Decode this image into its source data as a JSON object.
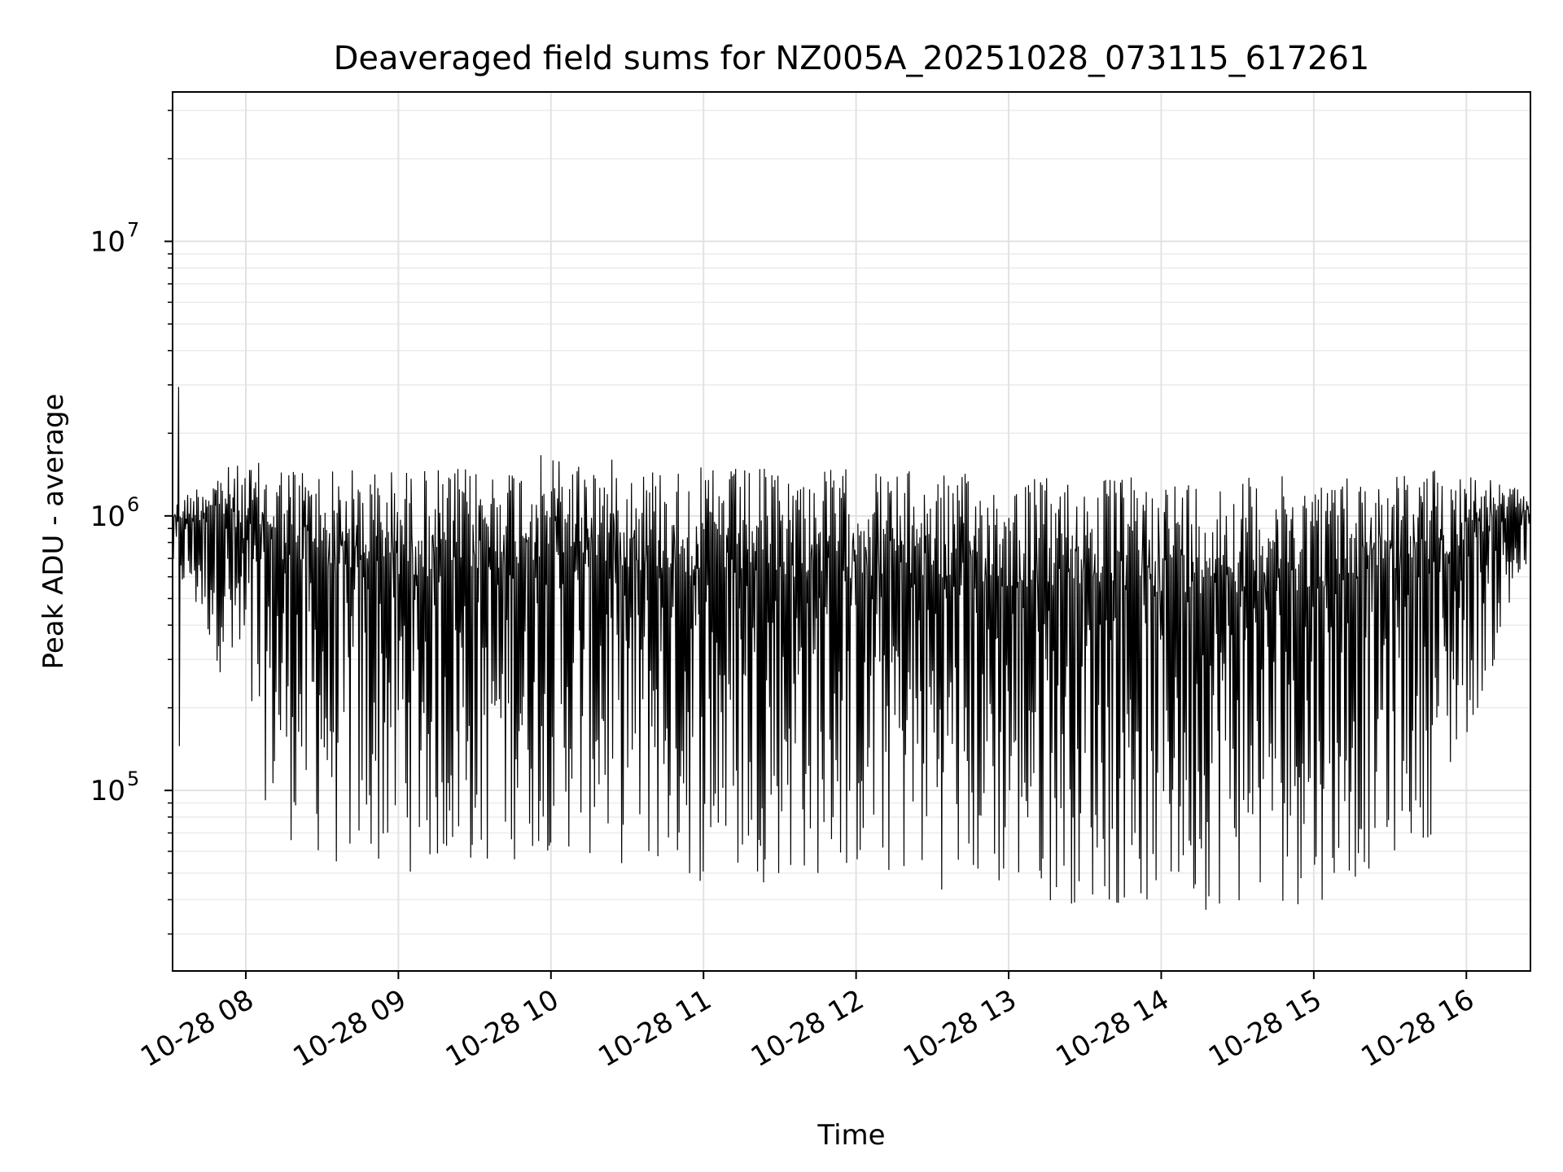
{
  "chart_data": {
    "type": "line",
    "title": "Deaveraged field sums for NZ005A_20251028_073115_617261",
    "xlabel": "Time",
    "ylabel": "Peak ADU - average",
    "yscale": "log",
    "ylim": [
      22000,
      35000000
    ],
    "xlim_hours": [
      7.52,
      16.42
    ],
    "grid": true,
    "grid_minor": true,
    "legend": "none",
    "x_ticks": [
      {
        "hour": 8,
        "label": "10-28 08"
      },
      {
        "hour": 9,
        "label": "10-28 09"
      },
      {
        "hour": 10,
        "label": "10-28 10"
      },
      {
        "hour": 11,
        "label": "10-28 11"
      },
      {
        "hour": 12,
        "label": "10-28 12"
      },
      {
        "hour": 13,
        "label": "10-28 13"
      },
      {
        "hour": 14,
        "label": "10-28 14"
      },
      {
        "hour": 15,
        "label": "10-28 15"
      },
      {
        "hour": 16,
        "label": "10-28 16"
      }
    ],
    "y_ticks": [
      {
        "value": 100000,
        "base": "10",
        "exp": "5"
      },
      {
        "value": 1000000,
        "base": "10",
        "exp": "6"
      },
      {
        "value": 10000000,
        "base": "10",
        "exp": "7"
      }
    ],
    "series": [
      {
        "name": "Peak ADU - average",
        "color": "#000000",
        "x_start_hour": 7.52,
        "x_end_hour": 16.42,
        "n_points": 1800,
        "description_values": {
          "typical_peak_max": 1800000,
          "absolute_max": 2950000,
          "typical_low_start": 500000,
          "typical_low_mid": 45000,
          "absolute_min": 32000,
          "end_level": 800000
        },
        "envelope": [
          {
            "hour": 7.52,
            "upper": 1100000,
            "lower": 600000
          },
          {
            "hour": 7.8,
            "upper": 1500000,
            "lower": 300000
          },
          {
            "hour": 8.2,
            "upper": 1600000,
            "lower": 70000
          },
          {
            "hour": 8.6,
            "upper": 1500000,
            "lower": 50000
          },
          {
            "hour": 9.5,
            "upper": 1500000,
            "lower": 50000
          },
          {
            "hour": 10.0,
            "upper": 1700000,
            "lower": 60000
          },
          {
            "hour": 11.0,
            "upper": 1500000,
            "lower": 45000
          },
          {
            "hour": 12.0,
            "upper": 1500000,
            "lower": 48000
          },
          {
            "hour": 13.0,
            "upper": 1400000,
            "lower": 40000
          },
          {
            "hour": 14.0,
            "upper": 1400000,
            "lower": 36000
          },
          {
            "hour": 15.0,
            "upper": 1400000,
            "lower": 38000
          },
          {
            "hour": 15.8,
            "upper": 1500000,
            "lower": 70000
          },
          {
            "hour": 16.0,
            "upper": 1500000,
            "lower": 150000
          },
          {
            "hour": 16.42,
            "upper": 1200000,
            "lower": 650000
          }
        ]
      }
    ]
  }
}
